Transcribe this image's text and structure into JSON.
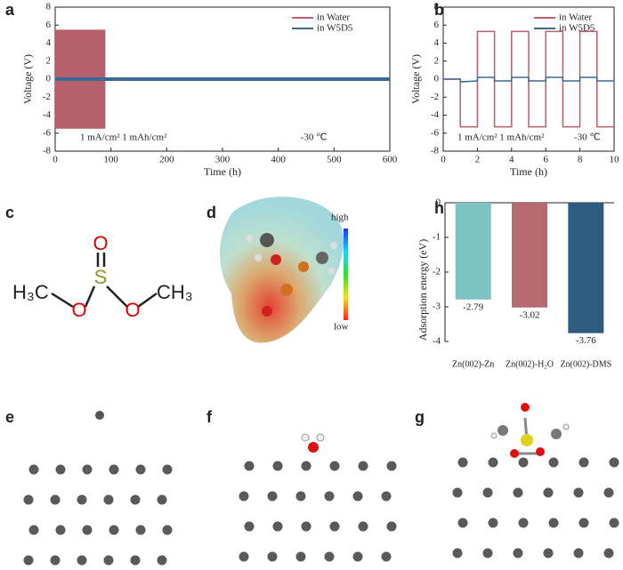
{
  "chart_data": [
    {
      "type": "line",
      "label": "a",
      "xlabel": "Time (h)",
      "ylabel": "Voltage (V)",
      "xlim": [
        0,
        600
      ],
      "xticks": [
        0,
        100,
        200,
        300,
        400,
        500,
        600
      ],
      "ylim": [
        -8,
        8
      ],
      "yticks": [
        -8,
        -6,
        -4,
        -2,
        0,
        2,
        4,
        6,
        8
      ],
      "series": [
        {
          "name": "in Water",
          "color": "#b5606a",
          "x": [
            0,
            90
          ],
          "values": [
            5.5,
            5.5
          ],
          "values_low": [
            -5.5,
            -5.5
          ]
        },
        {
          "name": "in W5D5",
          "color": "#3b6a94",
          "x": [
            0,
            600
          ],
          "values": [
            0,
            0
          ]
        }
      ],
      "annotations": [
        "1 mA/cm²  1 mAh/cm²",
        "-30 ℃"
      ]
    },
    {
      "type": "line",
      "label": "b",
      "xlabel": "Time (h)",
      "ylabel": "Voltage (V)",
      "xlim": [
        0,
        10
      ],
      "xticks": [
        0,
        2,
        4,
        6,
        8,
        10
      ],
      "ylim": [
        -8,
        8
      ],
      "yticks": [
        -8,
        -6,
        -4,
        -2,
        0,
        2,
        4,
        6,
        8
      ],
      "series": [
        {
          "name": "in Water",
          "color": "#b5606a",
          "x": [
            0,
            1,
            1,
            2,
            2,
            3,
            3,
            4,
            4,
            5,
            5,
            6,
            6,
            7,
            7,
            8,
            8,
            9,
            9,
            10
          ],
          "values": [
            0,
            0,
            -5.3,
            -5.3,
            5.3,
            5.3,
            -5.3,
            -5.3,
            5.3,
            5.3,
            -5.3,
            -5.3,
            5.3,
            5.3,
            -5.3,
            -5.3,
            5.3,
            5.3,
            -5.3,
            -5.3
          ]
        },
        {
          "name": "in W5D5",
          "color": "#3b6a94",
          "x": [
            0,
            1,
            1,
            2,
            2,
            3,
            3,
            4,
            4,
            5,
            5,
            6,
            6,
            7,
            7,
            8,
            8,
            9,
            9,
            10
          ],
          "values": [
            0,
            0,
            -0.3,
            -0.2,
            0.2,
            0.2,
            -0.2,
            -0.2,
            0.2,
            0.2,
            -0.2,
            -0.2,
            0.2,
            0.2,
            -0.2,
            -0.2,
            0.2,
            0.2,
            -0.2,
            -0.2
          ]
        }
      ],
      "annotations": [
        "1 mA/cm²  1 mAh/cm²",
        "-30 ℃"
      ]
    },
    {
      "type": "bar",
      "label": "h",
      "ylabel": "Adsorption energy (eV)",
      "categories": [
        "Zn(002)-Zn",
        "Zn(002)-H₂O",
        "Zn(002)-DMS"
      ],
      "values": [
        -2.79,
        -3.02,
        -3.76
      ],
      "colors": [
        "#7ec3c3",
        "#b56a70",
        "#2e5b80"
      ],
      "ylim": [
        -4,
        0
      ],
      "yticks": [
        0,
        -1,
        -2,
        -3,
        -4
      ]
    }
  ],
  "panels": [
    {
      "label": "c",
      "atoms": [
        "H₃C",
        "S",
        "O",
        "O",
        "O",
        "CH₃"
      ]
    },
    {
      "label": "d",
      "scale": [
        "high",
        "low"
      ]
    },
    {
      "label": "e"
    },
    {
      "label": "f"
    },
    {
      "label": "g"
    }
  ]
}
